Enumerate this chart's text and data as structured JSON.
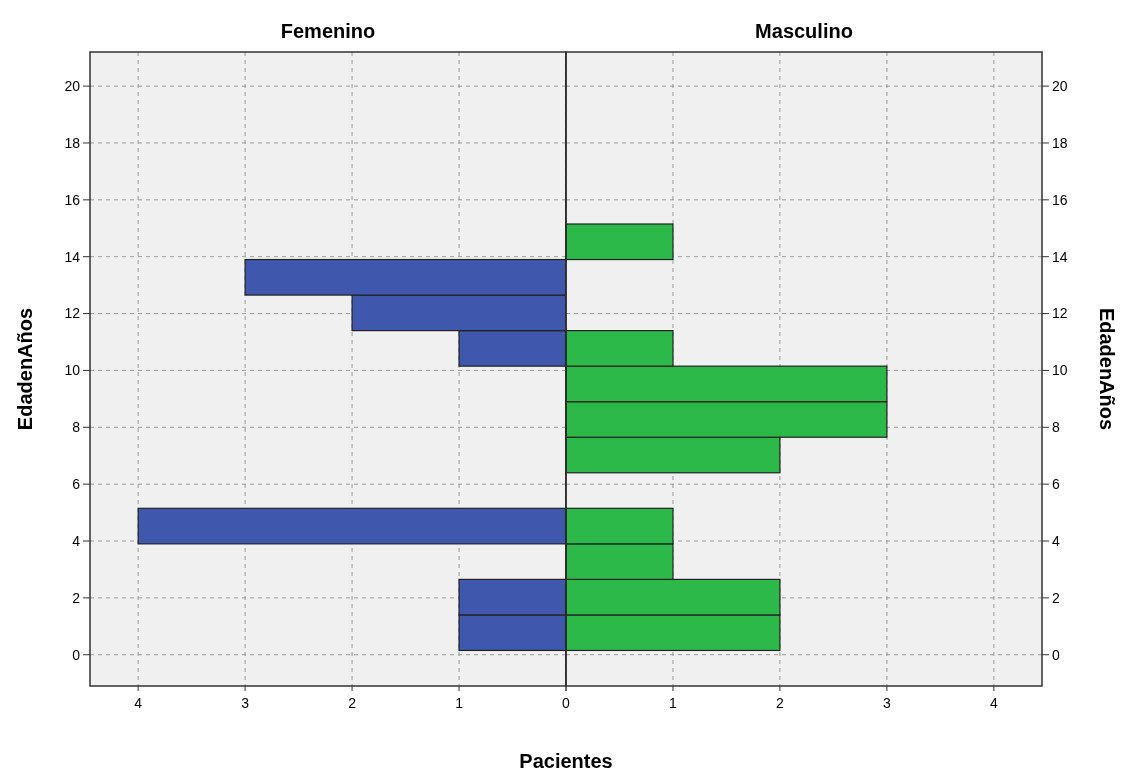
{
  "chart_data": [
    {
      "type": "histogram",
      "orientation": "horizontal",
      "title": "Femenino",
      "xlabel": "Pacientes",
      "ylabel": "EdadenAños",
      "bins": [
        0.15,
        1.4,
        2.65,
        3.9,
        5.15,
        6.4,
        7.65,
        8.9,
        10.15,
        11.4,
        12.65,
        13.9,
        15.15
      ],
      "values": [
        1,
        1,
        0,
        4,
        0,
        0,
        0,
        0,
        1,
        2,
        3,
        0
      ],
      "color": "#3f58ad",
      "xlim": [
        4.45,
        0
      ],
      "xticks": [
        4,
        3,
        2,
        1,
        0
      ],
      "ylim": [
        -1.1,
        21.2
      ],
      "yticks": [
        0,
        2,
        4,
        6,
        8,
        10,
        12,
        14,
        16,
        18,
        20
      ],
      "grid": true
    },
    {
      "type": "histogram",
      "orientation": "horizontal",
      "title": "Masculino",
      "ylabel": "EdadenAños",
      "bins": [
        0.15,
        1.4,
        2.65,
        3.9,
        5.15,
        6.4,
        7.65,
        8.9,
        10.15,
        11.4,
        12.65,
        13.9,
        15.15
      ],
      "values": [
        2,
        2,
        1,
        1,
        0,
        2,
        3,
        3,
        1,
        0,
        0,
        1
      ],
      "color": "#2db84a",
      "xlim": [
        0,
        4.45
      ],
      "xticks": [
        {
          "value": 0,
          "label": null
        },
        1,
        2,
        3,
        4
      ],
      "ylim": [
        -1.1,
        21.2
      ],
      "yticks": [
        0,
        2,
        4,
        6,
        8,
        10,
        12,
        14,
        16,
        18,
        20
      ],
      "grid": true
    }
  ]
}
